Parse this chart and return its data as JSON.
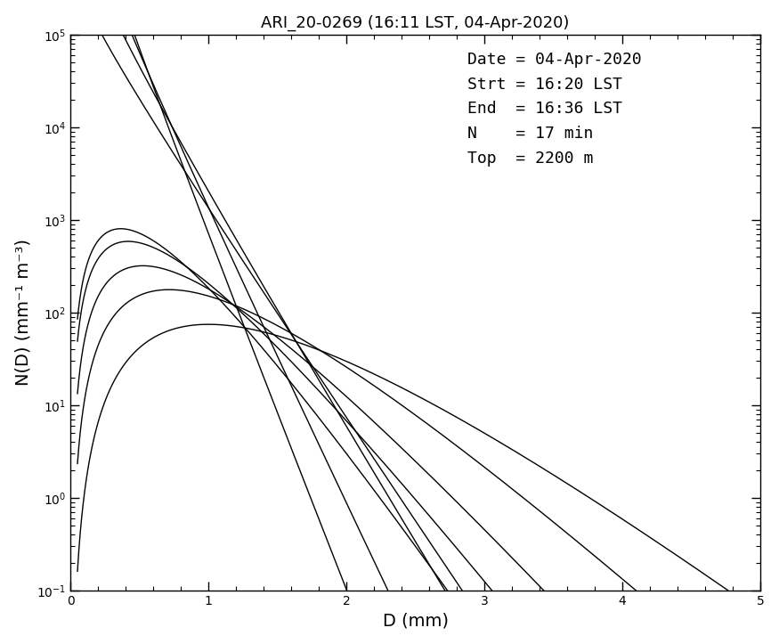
{
  "title": "ARI_20-0269 (16:11 LST, 04-Apr-2020)",
  "xlabel": "D (mm)",
  "ylabel": "N(D) (mm$^{-1}$ m$^{-3}$)",
  "xlim": [
    0,
    5
  ],
  "ylim": [
    0.1,
    100000.0
  ],
  "annotation_lines": [
    "Date = 04-Apr-2020",
    "Strt = 16:20 LST",
    "End  = 16:36 LST",
    "N    = 17 min",
    "Top  = 2200 m"
  ],
  "curves": [
    {
      "N0": 3500000.0,
      "mu": -0.5,
      "lambda": 8.5,
      "D_min": 0.1,
      "D_max": 5.0
    },
    {
      "N0": 1500000.0,
      "mu": -0.5,
      "lambda": 7.0,
      "D_min": 0.1,
      "D_max": 5.0
    },
    {
      "N0": 500000.0,
      "mu": -0.5,
      "lambda": 5.5,
      "D_min": 0.1,
      "D_max": 5.0
    },
    {
      "N0": 200000.0,
      "mu": -0.3,
      "lambda": 5.0,
      "D_min": 0.1,
      "D_max": 5.0
    },
    {
      "N0": 45000.0,
      "mu": 2.0,
      "lambda": 5.5,
      "D_min": 0.05,
      "D_max": 5.0
    },
    {
      "N0": 25000.0,
      "mu": 2.0,
      "lambda": 4.8,
      "D_min": 0.05,
      "D_max": 5.0
    },
    {
      "N0": 12000.0,
      "mu": 2.2,
      "lambda": 4.2,
      "D_min": 0.05,
      "D_max": 5.0
    },
    {
      "N0": 5000.0,
      "mu": 2.5,
      "lambda": 3.5,
      "D_min": 0.05,
      "D_max": 5.0
    },
    {
      "N0": 1500.0,
      "mu": 3.0,
      "lambda": 3.0,
      "D_min": 0.05,
      "D_max": 5.0
    }
  ],
  "linewidth": 1.0,
  "linecolor": "black",
  "background_color": "white",
  "figsize": [
    8.75,
    7.23
  ],
  "dpi": 100
}
